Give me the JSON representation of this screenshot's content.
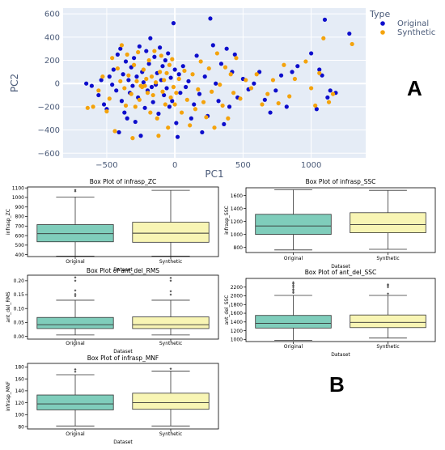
{
  "panel_labels": {
    "a": "A",
    "b": "B"
  },
  "colors": {
    "original": "#0d0dcc",
    "synthetic": "#f4a30c",
    "scatter_bg": "#e5ecf6",
    "box_original": "#7fcdbb",
    "box_synthetic": "#f8f5b4"
  },
  "chart_data": [
    {
      "id": "pca",
      "type": "scatter",
      "xlabel": "PC1",
      "ylabel": "PC2",
      "xlim": [
        -820,
        1400
      ],
      "ylim": [
        -640,
        650
      ],
      "xticks": [
        -500,
        0,
        500,
        1000
      ],
      "xtick_labels": [
        "−500",
        "0",
        "500",
        "1000"
      ],
      "yticks": [
        -600,
        -400,
        -200,
        0,
        200,
        400,
        600
      ],
      "ytick_labels": [
        "−600",
        "−400",
        "−200",
        "0",
        "200",
        "400",
        "600"
      ],
      "grid": true,
      "legend": {
        "title": "Type",
        "position": "top-right"
      },
      "series": [
        {
          "name": "Original",
          "color": "#0d0dcc",
          "points": [
            [
              -650,
              0
            ],
            [
              -610,
              -20
            ],
            [
              -560,
              -100
            ],
            [
              -540,
              30
            ],
            [
              -520,
              -180
            ],
            [
              -500,
              -220
            ],
            [
              -480,
              60
            ],
            [
              -460,
              -10
            ],
            [
              -450,
              120
            ],
            [
              -430,
              -60
            ],
            [
              -420,
              250
            ],
            [
              -410,
              -420
            ],
            [
              -400,
              300
            ],
            [
              -390,
              -150
            ],
            [
              -380,
              80
            ],
            [
              -370,
              -250
            ],
            [
              -360,
              190
            ],
            [
              -350,
              -300
            ],
            [
              -340,
              30
            ],
            [
              -330,
              -80
            ],
            [
              -320,
              140
            ],
            [
              -310,
              -20
            ],
            [
              -300,
              220
            ],
            [
              -290,
              -330
            ],
            [
              -280,
              60
            ],
            [
              -270,
              -120
            ],
            [
              -260,
              320
            ],
            [
              -250,
              -450
            ],
            [
              -240,
              100
            ],
            [
              -230,
              10
            ],
            [
              -220,
              -210
            ],
            [
              -210,
              280
            ],
            [
              -200,
              -60
            ],
            [
              -190,
              170
            ],
            [
              -180,
              390
            ],
            [
              -170,
              -30
            ],
            [
              -160,
              -160
            ],
            [
              -150,
              230
            ],
            [
              -140,
              -10
            ],
            [
              -130,
              90
            ],
            [
              -120,
              -260
            ],
            [
              -110,
              310
            ],
            [
              -100,
              30
            ],
            [
              -90,
              150
            ],
            [
              -80,
              -100
            ],
            [
              -70,
              200
            ],
            [
              -60,
              -40
            ],
            [
              -50,
              260
            ],
            [
              -40,
              -200
            ],
            [
              -30,
              50
            ],
            [
              -20,
              -150
            ],
            [
              -10,
              520
            ],
            [
              0,
              120
            ],
            [
              10,
              -340
            ],
            [
              20,
              -460
            ],
            [
              30,
              80
            ],
            [
              40,
              -80
            ],
            [
              60,
              150
            ],
            [
              80,
              -30
            ],
            [
              100,
              20
            ],
            [
              120,
              -300
            ],
            [
              140,
              -180
            ],
            [
              160,
              240
            ],
            [
              180,
              -90
            ],
            [
              200,
              -420
            ],
            [
              220,
              60
            ],
            [
              240,
              -280
            ],
            [
              260,
              560
            ],
            [
              280,
              330
            ],
            [
              300,
              0
            ],
            [
              320,
              -150
            ],
            [
              340,
              170
            ],
            [
              360,
              -350
            ],
            [
              380,
              300
            ],
            [
              400,
              -200
            ],
            [
              420,
              100
            ],
            [
              440,
              250
            ],
            [
              460,
              -120
            ],
            [
              500,
              40
            ],
            [
              540,
              -50
            ],
            [
              580,
              0
            ],
            [
              620,
              100
            ],
            [
              660,
              -140
            ],
            [
              700,
              -250
            ],
            [
              740,
              -60
            ],
            [
              780,
              70
            ],
            [
              820,
              -200
            ],
            [
              860,
              100
            ],
            [
              900,
              150
            ],
            [
              1000,
              260
            ],
            [
              1040,
              -220
            ],
            [
              1060,
              120
            ],
            [
              1080,
              70
            ],
            [
              1100,
              550
            ],
            [
              1120,
              -120
            ],
            [
              1140,
              -60
            ],
            [
              1180,
              -80
            ],
            [
              1280,
              430
            ]
          ]
        },
        {
          "name": "Synthetic",
          "color": "#f4a30c",
          "points": [
            [
              -640,
              -210
            ],
            [
              -600,
              -200
            ],
            [
              -560,
              -60
            ],
            [
              -530,
              60
            ],
            [
              -500,
              -240
            ],
            [
              -480,
              -130
            ],
            [
              -460,
              220
            ],
            [
              -440,
              -410
            ],
            [
              -420,
              130
            ],
            [
              -400,
              20
            ],
            [
              -390,
              330
            ],
            [
              -370,
              -40
            ],
            [
              -360,
              -190
            ],
            [
              -350,
              250
            ],
            [
              -340,
              70
            ],
            [
              -320,
              -90
            ],
            [
              -310,
              -470
            ],
            [
              -300,
              160
            ],
            [
              -290,
              -200
            ],
            [
              -280,
              20
            ],
            [
              -270,
              270
            ],
            [
              -260,
              -140
            ],
            [
              -250,
              -20
            ],
            [
              -240,
              -30
            ],
            [
              -230,
              120
            ],
            [
              -220,
              -20
            ],
            [
              -210,
              40
            ],
            [
              -200,
              -80
            ],
            [
              -190,
              200
            ],
            [
              -180,
              -250
            ],
            [
              -170,
              60
            ],
            [
              -160,
              -100
            ],
            [
              -150,
              280
            ],
            [
              -140,
              10
            ],
            [
              -130,
              -300
            ],
            [
              -120,
              -450
            ],
            [
              -110,
              100
            ],
            [
              -100,
              240
            ],
            [
              -90,
              -70
            ],
            [
              -80,
              30
            ],
            [
              -70,
              -180
            ],
            [
              -60,
              90
            ],
            [
              -50,
              -380
            ],
            [
              -40,
              160
            ],
            [
              -30,
              -120
            ],
            [
              -20,
              210
            ],
            [
              -10,
              -30
            ],
            [
              0,
              -180
            ],
            [
              10,
              -80
            ],
            [
              30,
              40
            ],
            [
              50,
              -250
            ],
            [
              70,
              110
            ],
            [
              90,
              -140
            ],
            [
              110,
              -360
            ],
            [
              130,
              80
            ],
            [
              150,
              -220
            ],
            [
              170,
              -50
            ],
            [
              190,
              190
            ],
            [
              210,
              -160
            ],
            [
              230,
              -290
            ],
            [
              250,
              130
            ],
            [
              270,
              -70
            ],
            [
              290,
              -380
            ],
            [
              310,
              260
            ],
            [
              330,
              -10
            ],
            [
              350,
              -190
            ],
            [
              370,
              140
            ],
            [
              390,
              -300
            ],
            [
              410,
              80
            ],
            [
              430,
              -80
            ],
            [
              450,
              220
            ],
            [
              480,
              -130
            ],
            [
              520,
              30
            ],
            [
              560,
              -40
            ],
            [
              600,
              80
            ],
            [
              640,
              -180
            ],
            [
              680,
              -90
            ],
            [
              720,
              30
            ],
            [
              760,
              -170
            ],
            [
              800,
              160
            ],
            [
              840,
              -110
            ],
            [
              880,
              40
            ],
            [
              960,
              190
            ],
            [
              1000,
              -40
            ],
            [
              1030,
              -190
            ],
            [
              1060,
              90
            ],
            [
              1090,
              390
            ],
            [
              1130,
              -160
            ],
            [
              1160,
              -90
            ],
            [
              1300,
              340
            ]
          ]
        }
      ]
    },
    {
      "id": "box_infrasp_zc",
      "type": "box",
      "title": "Box Plot of infrasp_ZC",
      "xlabel": "Dataset",
      "ylabel": "infrasp_ZC",
      "categories": [
        "Original",
        "Synthetic"
      ],
      "ylim": [
        380,
        1110
      ],
      "yticks": [
        400,
        500,
        600,
        700,
        800,
        900,
        1000,
        1100
      ],
      "boxes": [
        {
          "name": "Original",
          "min": 385,
          "q1": 535,
          "median": 620,
          "q3": 715,
          "max": 1005,
          "outliers": [
            1065,
            1078
          ]
        },
        {
          "name": "Synthetic",
          "min": 385,
          "q1": 530,
          "median": 625,
          "q3": 740,
          "max": 1075,
          "outliers": []
        }
      ]
    },
    {
      "id": "box_infrasp_ssc",
      "type": "box",
      "title": "Box Plot of infrasp_SSC",
      "xlabel": "Dataset",
      "ylabel": "infrasp_SSC",
      "categories": [
        "Original",
        "Synthetic"
      ],
      "ylim": [
        720,
        1720
      ],
      "yticks": [
        800,
        1000,
        1200,
        1400,
        1600
      ],
      "boxes": [
        {
          "name": "Original",
          "min": 760,
          "q1": 1000,
          "median": 1130,
          "q3": 1310,
          "max": 1690,
          "outliers": []
        },
        {
          "name": "Synthetic",
          "min": 770,
          "q1": 1025,
          "median": 1150,
          "q3": 1335,
          "max": 1680,
          "outliers": []
        }
      ]
    },
    {
      "id": "box_ant_del_rms",
      "type": "box",
      "title": "Box Plot of ant_del_RMS",
      "xlabel": "Dataset",
      "ylabel": "ant_del_RMS",
      "categories": [
        "Original",
        "Synthetic"
      ],
      "ylim": [
        -0.01,
        0.22
      ],
      "yticks": [
        0.0,
        0.05,
        0.1,
        0.15,
        0.2
      ],
      "ytick_labels": [
        "0.00",
        "0.05",
        "0.10",
        "0.15",
        "0.20"
      ],
      "boxes": [
        {
          "name": "Original",
          "min": 0.005,
          "q1": 0.028,
          "median": 0.042,
          "q3": 0.068,
          "max": 0.13,
          "outliers": [
            0.145,
            0.152,
            0.165,
            0.2,
            0.212
          ]
        },
        {
          "name": "Synthetic",
          "min": 0.005,
          "q1": 0.028,
          "median": 0.042,
          "q3": 0.07,
          "max": 0.13,
          "outliers": [
            0.15,
            0.162,
            0.2,
            0.21
          ]
        }
      ]
    },
    {
      "id": "box_ant_del_ssc",
      "type": "box",
      "title": "Box Plot of ant_del_SSC",
      "xlabel": "Dataset",
      "ylabel": "ant_del_SSC",
      "categories": [
        "Original",
        "Synthetic"
      ],
      "ylim": [
        950,
        2400
      ],
      "yticks": [
        1000,
        1200,
        1400,
        1600,
        1800,
        2000,
        2200
      ],
      "boxes": [
        {
          "name": "Original",
          "min": 980,
          "q1": 1260,
          "median": 1370,
          "q3": 1550,
          "max": 2010,
          "outliers": [
            2070,
            2110,
            2150,
            2200,
            2240,
            2280,
            2310
          ]
        },
        {
          "name": "Synthetic",
          "min": 1030,
          "q1": 1270,
          "median": 1390,
          "q3": 1560,
          "max": 2010,
          "outliers": [
            2050,
            2200,
            2240,
            2260
          ]
        }
      ]
    },
    {
      "id": "box_infrasp_mnf",
      "type": "box",
      "title": "Box Plot of infrasp_MNF",
      "xlabel": "Dataset",
      "ylabel": "infrasp_MNF",
      "categories": [
        "Original",
        "Synthetic"
      ],
      "ylim": [
        76,
        186
      ],
      "yticks": [
        80,
        100,
        120,
        140,
        160,
        180
      ],
      "boxes": [
        {
          "name": "Original",
          "min": 81,
          "q1": 108,
          "median": 118,
          "q3": 133,
          "max": 167,
          "outliers": [
            172,
            176
          ]
        },
        {
          "name": "Synthetic",
          "min": 81,
          "q1": 109,
          "median": 120,
          "q3": 136,
          "max": 173,
          "outliers": [
            177
          ]
        }
      ]
    }
  ]
}
